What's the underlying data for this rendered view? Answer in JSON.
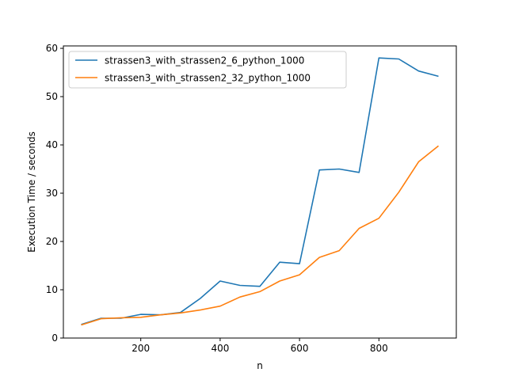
{
  "chart_data": {
    "type": "line",
    "title": "",
    "xlabel": "n",
    "ylabel": "Execution Time / seconds",
    "xlim": [
      5,
      995
    ],
    "ylim": [
      0,
      60.5
    ],
    "xticks": [
      200,
      400,
      600,
      800
    ],
    "yticks": [
      0,
      10,
      20,
      30,
      40,
      50,
      60
    ],
    "grid": false,
    "legend_position": "top-left",
    "x": [
      50,
      100,
      150,
      200,
      250,
      300,
      350,
      400,
      450,
      500,
      550,
      600,
      650,
      700,
      750,
      800,
      850,
      900,
      950
    ],
    "series": [
      {
        "name": "strassen3_with_strassen2_6_python_1000",
        "color": "#1f77b4",
        "values": [
          2.8,
          4.1,
          4.1,
          4.9,
          4.8,
          5.3,
          8.2,
          11.8,
          10.9,
          10.7,
          15.7,
          15.4,
          34.8,
          35.0,
          34.3,
          58.0,
          57.8,
          55.3,
          54.2
        ]
      },
      {
        "name": "strassen3_with_strassen2_32_python_1000",
        "color": "#ff7f0e",
        "values": [
          2.7,
          4.0,
          4.2,
          4.3,
          4.8,
          5.2,
          5.8,
          6.6,
          8.5,
          9.6,
          11.8,
          13.1,
          16.7,
          18.1,
          22.7,
          24.8,
          30.2,
          36.5,
          39.8
        ]
      }
    ]
  }
}
